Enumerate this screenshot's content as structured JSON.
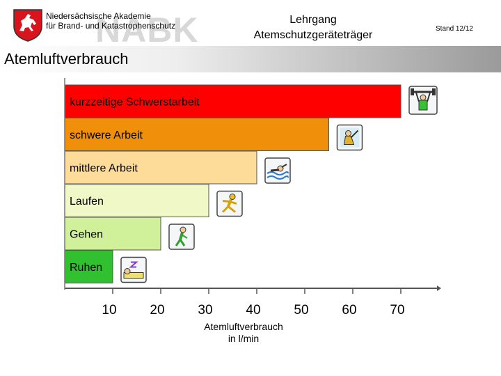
{
  "header": {
    "org_line1": "Niedersächsische Akademie",
    "org_line2": "für Brand- und Katastrophenschutz",
    "watermark": "NABK",
    "course_line1": "Lehrgang",
    "course_line2": "Atemschutzgeräteträger",
    "stand": "Stand 12/12",
    "logo_icon": "lower-saxony-horse-crest-icon"
  },
  "banner": {
    "title": "Atemluftverbrauch"
  },
  "chart_data": {
    "type": "bar",
    "orientation": "horizontal",
    "title": "",
    "categories": [
      "kurzzeitige Schwerstarbeit",
      "schwere Arbeit",
      "mittlere Arbeit",
      "Laufen",
      "Gehen",
      "Ruhen"
    ],
    "values": [
      70,
      55,
      40,
      30,
      20,
      10
    ],
    "colors": [
      "#ff0000",
      "#f0900a",
      "#fddc9a",
      "#f0f8c8",
      "#d0f09a",
      "#30c030"
    ],
    "icons": [
      "weightlifter-icon",
      "worker-icon",
      "swimmer-icon",
      "runner-icon",
      "walker-icon",
      "sleeper-icon"
    ],
    "xticks": [
      10,
      20,
      30,
      40,
      50,
      60,
      70
    ],
    "xlim": [
      0,
      70
    ],
    "xlabel_line1": "Atemluftverbrauch",
    "xlabel_line2": "in l/min",
    "legend": "none",
    "grid": false
  }
}
